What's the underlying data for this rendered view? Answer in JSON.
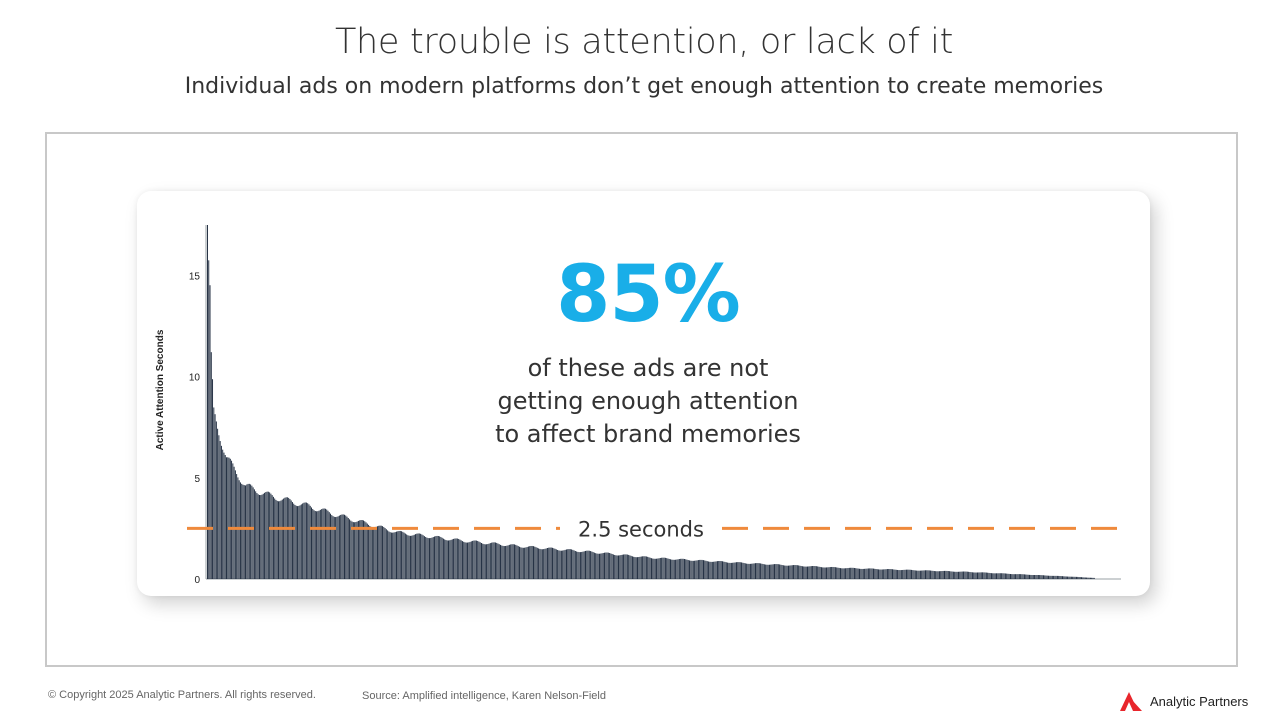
{
  "header": {
    "title": "The trouble is attention, or lack of it",
    "subtitle": "Individual ads on modern platforms don’t get enough attention to create memories"
  },
  "callout": {
    "stat": "85%",
    "lines": [
      "of these ads are not",
      "getting enough attention",
      "to affect brand memories"
    ]
  },
  "footer": {
    "copyright": "© Copyright 2025 Analytic Partners. All rights reserved.",
    "source": "Source: Amplified intelligence, Karen Nelson-Field",
    "brand": "Analytic Partners"
  },
  "colors": {
    "accent_blue": "#19aee8",
    "threshold_orange": "#ef8a3c",
    "bar": "#1d2a3d",
    "logo_red": "#e8262c"
  },
  "chart_data": {
    "type": "bar",
    "ylabel": "Active Attention Seconds",
    "xlabel": "",
    "ylim": [
      0,
      17.5
    ],
    "yticks": [
      0,
      5,
      10,
      15
    ],
    "grid": false,
    "sorted": "descending",
    "n_bars": 700,
    "threshold": {
      "value": 2.5,
      "label": "2.5 seconds"
    },
    "profile_ranks": [
      0,
      1,
      2,
      3,
      5,
      8,
      15,
      30,
      50,
      80,
      100,
      150,
      200,
      250,
      300,
      350,
      420,
      500,
      600,
      680,
      700
    ],
    "profile_values": [
      17.5,
      15.5,
      14.1,
      10.8,
      8.2,
      7.5,
      6.0,
      4.6,
      4.1,
      3.6,
      3.2,
      2.3,
      1.9,
      1.6,
      1.35,
      1.05,
      0.8,
      0.55,
      0.35,
      0.12,
      0.05
    ]
  }
}
